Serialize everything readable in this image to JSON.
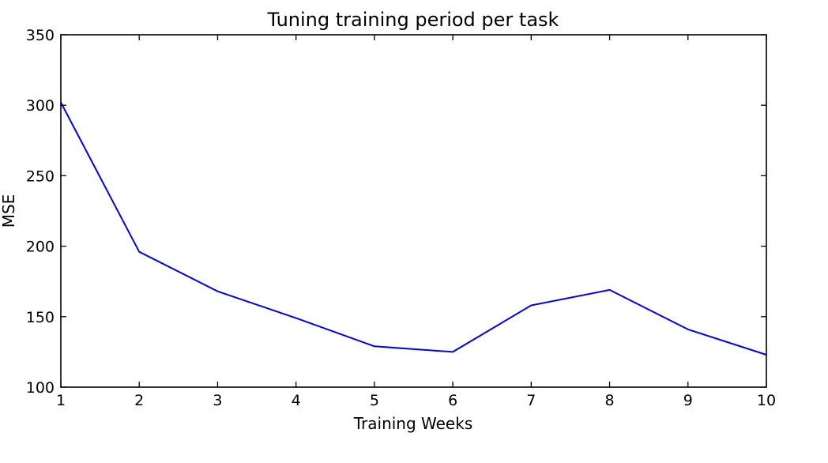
{
  "chart_data": {
    "type": "line",
    "title": "Tuning training period per task",
    "xlabel": "Training Weeks",
    "ylabel": "MSE",
    "xlim": [
      1,
      10
    ],
    "ylim": [
      100,
      350
    ],
    "xticks": [
      1,
      2,
      3,
      4,
      5,
      6,
      7,
      8,
      9,
      10
    ],
    "yticks": [
      100,
      150,
      200,
      250,
      300,
      350
    ],
    "grid": false,
    "series": [
      {
        "color": "#0000ff",
        "x": [
          1,
          2,
          3,
          4,
          5,
          6,
          7,
          8,
          9,
          10
        ],
        "y": [
          302,
          196,
          168,
          149,
          129,
          125,
          158,
          169,
          141,
          123
        ]
      }
    ]
  }
}
